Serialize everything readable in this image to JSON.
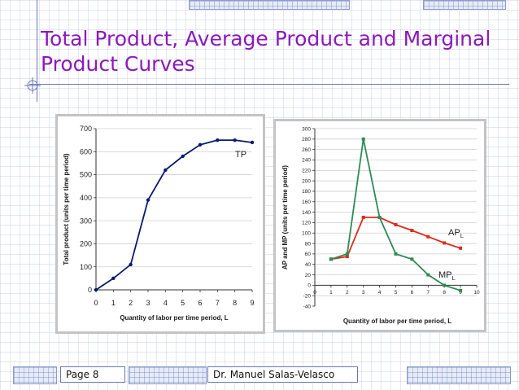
{
  "slide": {
    "title": "Total Product, Average Product and Marginal Product Curves",
    "page": "Page 8",
    "author": "Dr. Manuel Salas-Velasco"
  },
  "colors": {
    "title": "#8b1ab8",
    "tp_line": "#0b1a70",
    "ap_line": "#dd2b1b",
    "mp_line": "#2e8b57"
  },
  "chart_data": [
    {
      "type": "line",
      "title": "",
      "xlabel": "Quantity of labor per time period, L",
      "ylabel": "Total product (units per time period)",
      "xlim": [
        0,
        9
      ],
      "ylim": [
        0,
        700
      ],
      "x_ticks": [
        0,
        1,
        2,
        3,
        4,
        5,
        6,
        7,
        8,
        9
      ],
      "y_ticks": [
        0,
        100,
        200,
        300,
        400,
        500,
        600,
        700
      ],
      "grid": "horizontal",
      "series": [
        {
          "name": "TP",
          "x": [
            0,
            1,
            2,
            3,
            4,
            5,
            6,
            7,
            8,
            9
          ],
          "values": [
            0,
            50,
            110,
            390,
            520,
            580,
            630,
            650,
            650,
            640
          ]
        }
      ]
    },
    {
      "type": "line",
      "title": "",
      "xlabel": "Quantity of labor per time period, L",
      "ylabel": "AP and MP (units per time period)",
      "xlim": [
        0,
        10
      ],
      "ylim": [
        -40,
        300
      ],
      "x_ticks": [
        0,
        1,
        2,
        3,
        4,
        5,
        6,
        7,
        8,
        9,
        10
      ],
      "y_ticks": [
        -40,
        -20,
        0,
        20,
        40,
        60,
        80,
        100,
        120,
        140,
        160,
        180,
        200,
        220,
        240,
        260,
        280,
        300
      ],
      "grid": "horizontal",
      "series": [
        {
          "name": "AP",
          "name_sub": "L",
          "x": [
            1,
            2,
            3,
            4,
            5,
            6,
            7,
            8,
            9
          ],
          "values": [
            50,
            55,
            130,
            130,
            116,
            105,
            93,
            81,
            71
          ]
        },
        {
          "name": "MP",
          "name_sub": "L",
          "x": [
            1,
            2,
            3,
            4,
            5,
            6,
            7,
            8,
            9
          ],
          "values": [
            50,
            60,
            280,
            130,
            60,
            50,
            20,
            0,
            -10
          ]
        }
      ]
    }
  ]
}
